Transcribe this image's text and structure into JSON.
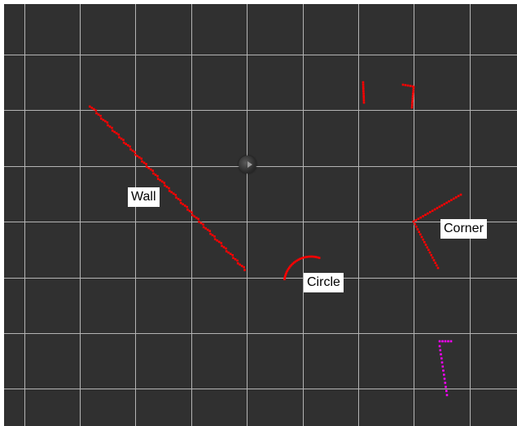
{
  "viewer": {
    "background": "#303030",
    "grid_color": "#b4b4b4",
    "scan_color": "#ff0000",
    "highlight_color": "#ff00ff"
  },
  "labels": {
    "wall": "Wall",
    "circle": "Circle",
    "corner": "Corner"
  },
  "icons": {
    "robot": "robot-marker-icon"
  }
}
